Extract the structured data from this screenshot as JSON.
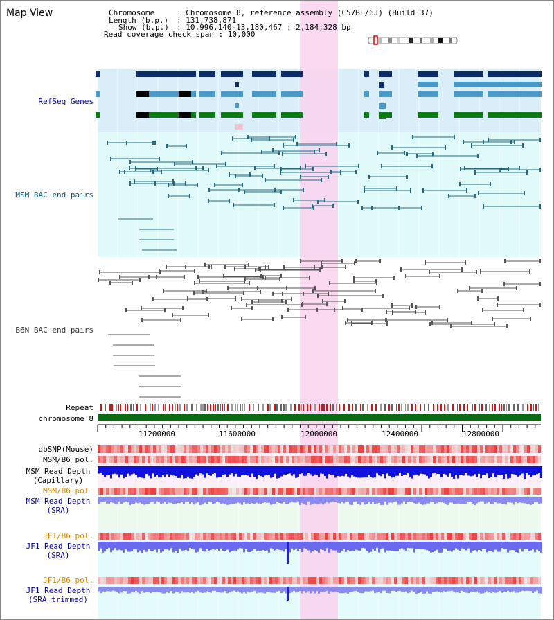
{
  "header": {
    "title": "Map View",
    "chromosome_label": "Chromosome",
    "chromosome_value": ": Chromosome 8, reference assembly (C57BL/6J) (Build 37)",
    "length_label": "Length (b.p.)",
    "length_value": ": 131,738,871",
    "show_label": "Show (b.p.)",
    "show_value": ": 10,996,140-13,180,467 : 2,184,328 bp",
    "coverage_label": "Read coverage check span : 10,000"
  },
  "tracks": {
    "refseq": "RefSeq Genes",
    "msm_bac": "MSM BAC end pairs",
    "b6n_bac": "B6N BAC end pairs",
    "repeat": "Repeat",
    "chromosome": "chromosome 8",
    "dbsnp": "dbSNP(Mouse)",
    "msm_b6_pol": "MSM/B6 pol.",
    "msm_depth_cap_1": "MSM Read Depth",
    "msm_depth_cap_2": "(Capillary)",
    "msm_b6_pol2": "MSM/B6 pol.",
    "msm_depth_sra_1": "MSM Read Depth",
    "msm_depth_sra_2": "(SRA)",
    "jf1_pol": "JF1/B6 pol.",
    "jf1_depth_sra_1": "JF1 Read Depth",
    "jf1_depth_sra_2": "(SRA)",
    "jf1_pol2": "JF1/B6 pol.",
    "jf1_depth_trim_1": "JF1 Read Depth",
    "jf1_depth_trim_2": "(SRA trimmed)"
  },
  "axis": {
    "ticks": [
      "11200000",
      "11600000",
      "12000000",
      "12400000",
      "12800000"
    ]
  },
  "colors": {
    "refseq_label": "#0000aa",
    "msm_label": "#005577",
    "b6n_label": "#333333",
    "orange_label": "#dd8800",
    "blue_label": "#0000aa",
    "highlight": "#f9d2ee"
  }
}
